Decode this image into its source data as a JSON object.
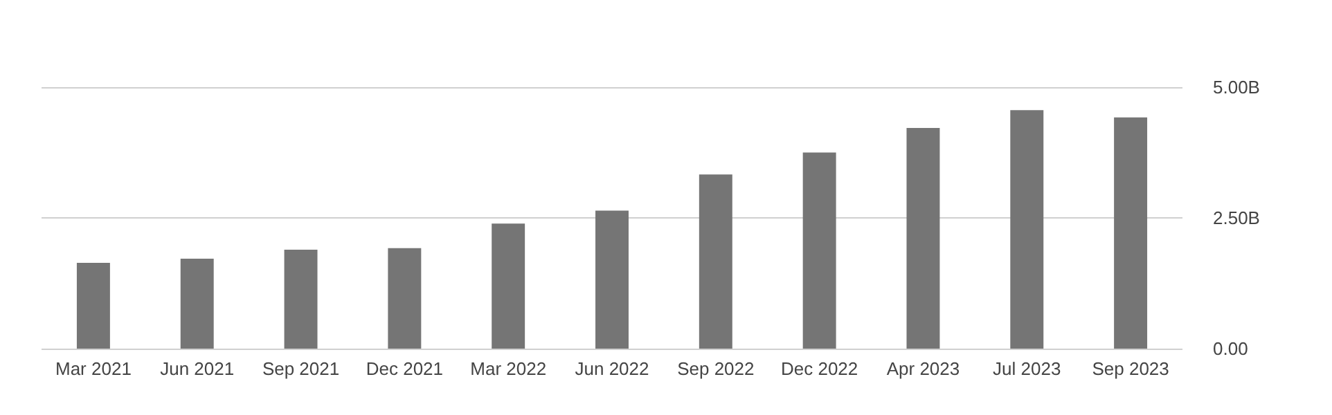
{
  "chart_data": {
    "type": "bar",
    "categories": [
      "Mar 2021",
      "Jun 2021",
      "Sep 2021",
      "Dec 2021",
      "Mar 2022",
      "Jun 2022",
      "Sep 2022",
      "Dec 2022",
      "Apr 2023",
      "Jul 2023",
      "Sep 2023"
    ],
    "values": [
      1.64,
      1.72,
      1.89,
      1.92,
      2.39,
      2.64,
      3.33,
      3.75,
      4.22,
      4.56,
      4.42
    ],
    "color": "#757575",
    "ylim": [
      0,
      5
    ],
    "yticks": [
      {
        "value": 0,
        "label": "0.00"
      },
      {
        "value": 2.5,
        "label": "2.50B"
      },
      {
        "value": 5,
        "label": "5.00B"
      }
    ],
    "grid": "y"
  }
}
